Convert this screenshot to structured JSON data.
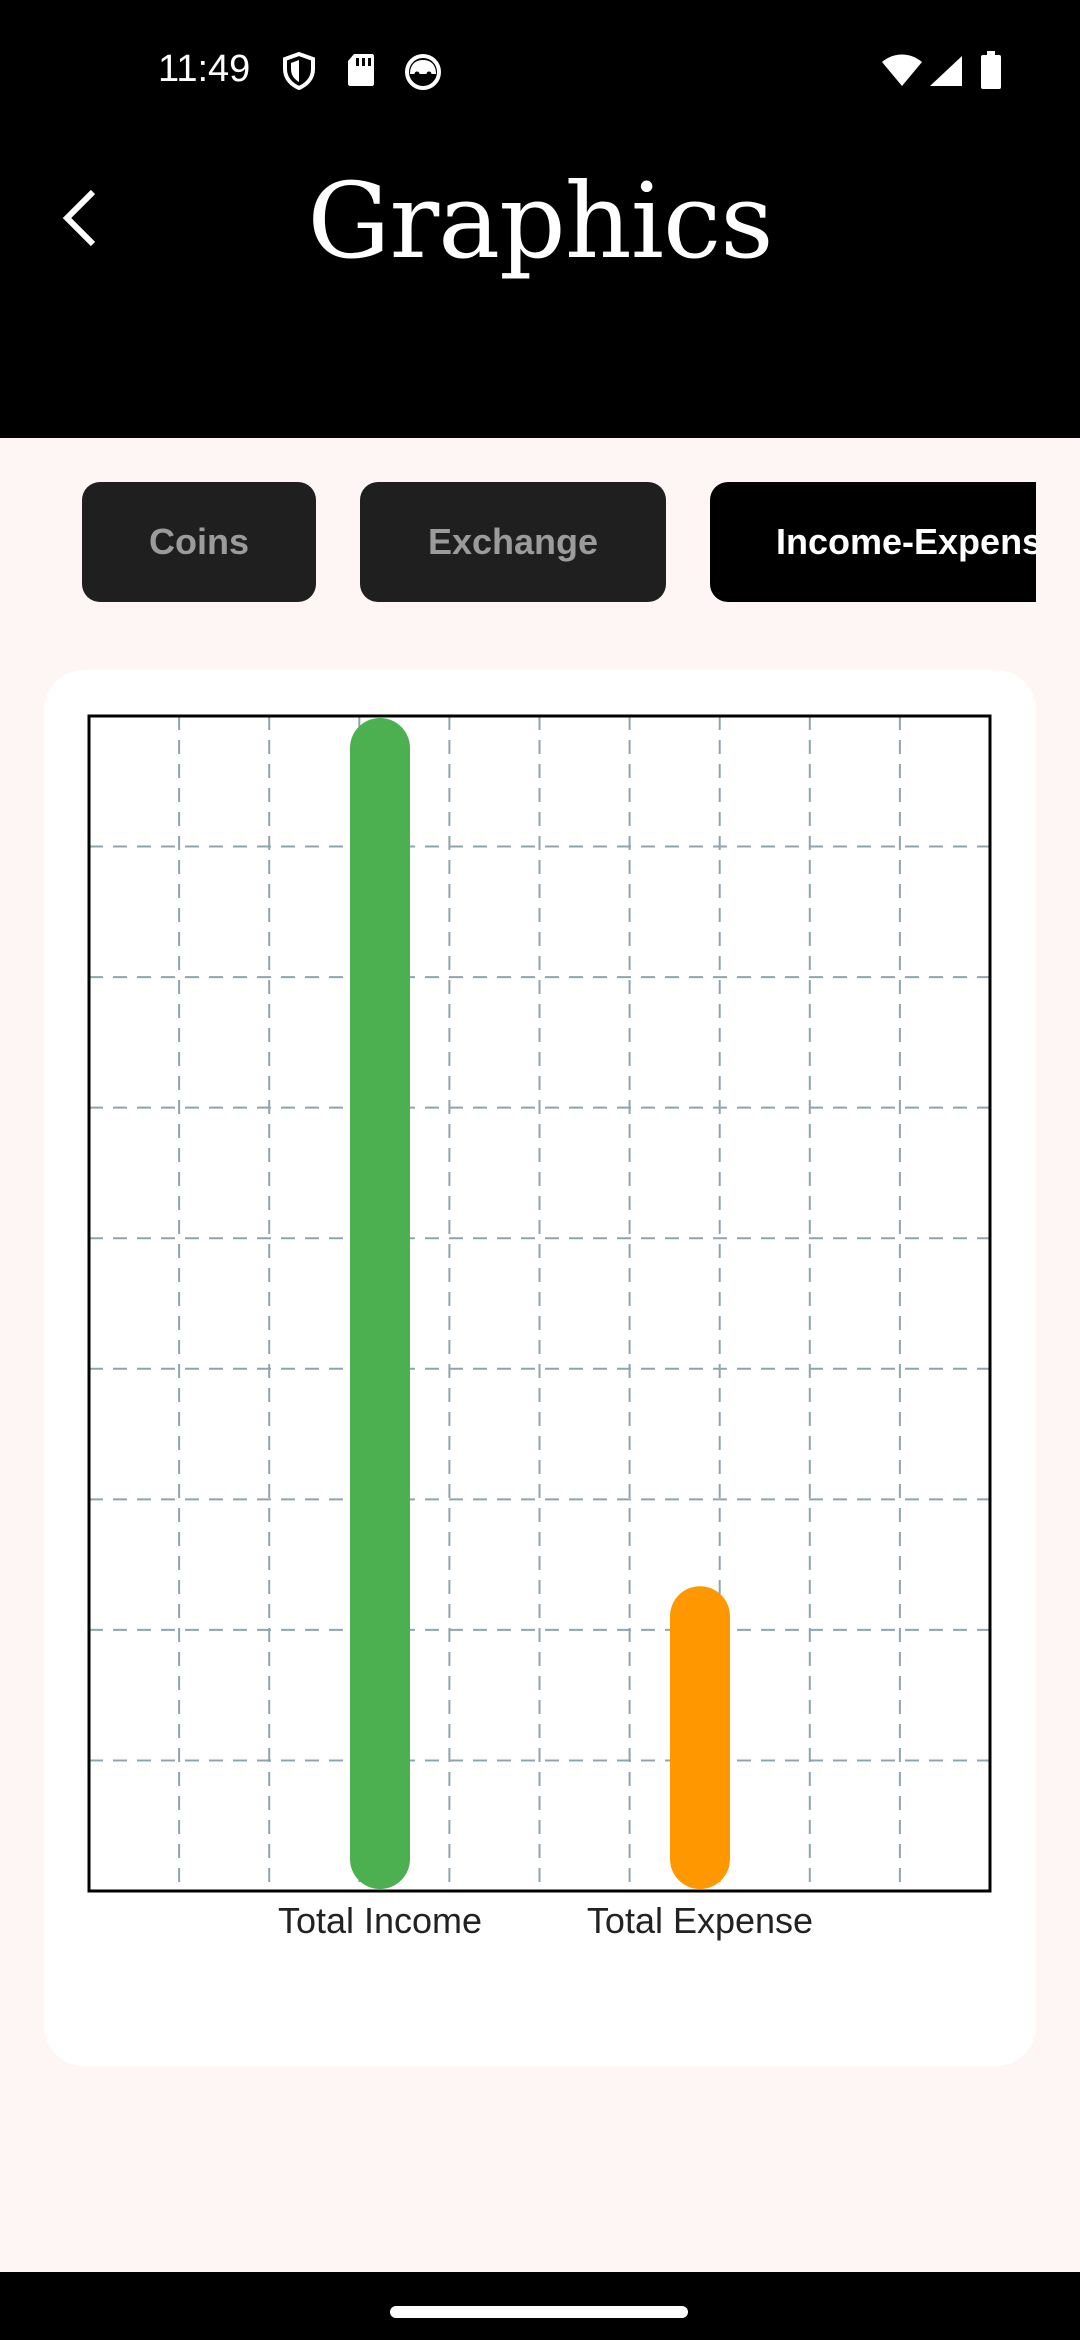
{
  "status_bar": {
    "time": "11:49",
    "icons": [
      "shield-icon",
      "sd-card-icon",
      "cat-face-icon",
      "wifi-icon",
      "signal-icon",
      "battery-icon"
    ]
  },
  "app_bar": {
    "title": "Graphics",
    "back_icon": "chevron-left-icon"
  },
  "tabs": [
    {
      "label": "Coins",
      "active": false
    },
    {
      "label": "Exchange",
      "active": false
    },
    {
      "label": "Income-Expense",
      "active": true
    }
  ],
  "colors": {
    "income": "#4caf50",
    "expense": "#ff9800",
    "grid": "#90a4ae",
    "tab_inactive_bg": "#1f1f1f",
    "tab_active_bg": "#000000"
  },
  "chart_data": {
    "type": "bar",
    "categories": [
      "Total Income",
      "Total Expense"
    ],
    "values": [
      9.0,
      2.35
    ],
    "colors": [
      "#4caf50",
      "#ff9800"
    ],
    "ylim": [
      0,
      9
    ],
    "grid": true,
    "grid_style": "dashed",
    "legend": "none",
    "title": "",
    "xlabel": "",
    "ylabel": ""
  }
}
